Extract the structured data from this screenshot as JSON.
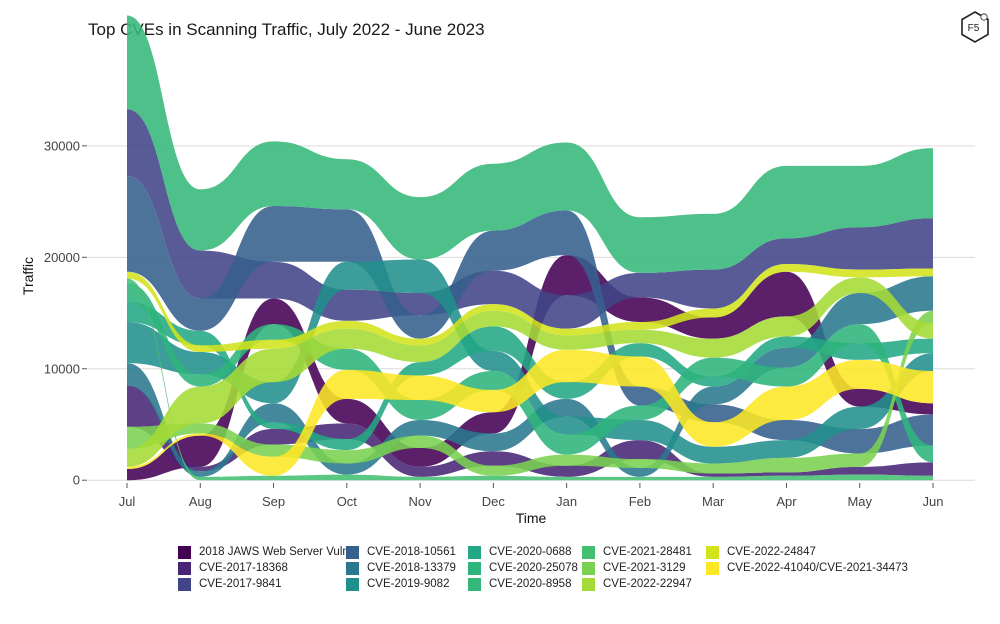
{
  "chart_data": {
    "type": "area",
    "subtype": "bump-stream",
    "title": "Top CVEs in Scanning Traffic, July 2022 - June 2023",
    "xlabel": "Time",
    "ylabel": "Traffic",
    "x": [
      "Jul",
      "Aug",
      "Sep",
      "Oct",
      "Nov",
      "Dec",
      "Jan",
      "Feb",
      "Mar",
      "Apr",
      "May",
      "Jun"
    ],
    "yticks": [
      0,
      10000,
      20000,
      30000
    ],
    "ytick_labels": [
      "0",
      "10000",
      "20000",
      "30000"
    ],
    "ylim": [
      -700,
      39500
    ],
    "grid": true,
    "legend_position": "bottom",
    "series": [
      {
        "name": "2018 JAWS Web Server Vuln",
        "color": "#440154",
        "values": [
          1000,
          2800,
          2300,
          2200,
          1700,
          1900,
          3600,
          2200,
          1900,
          4000,
          1600,
          1000
        ]
      },
      {
        "name": "CVE-2017-18368",
        "color": "#482576",
        "values": [
          3700,
          400,
          1400,
          1400,
          900,
          1300,
          1000,
          1700,
          300,
          300,
          700,
          1200
        ]
      },
      {
        "name": "CVE-2017-9841",
        "color": "#414487",
        "values": [
          6000,
          4300,
          3300,
          2800,
          2000,
          3000,
          3000,
          2200,
          3500,
          2300,
          3800,
          4500
        ]
      },
      {
        "name": "CVE-2018-10561",
        "color": "#35608d",
        "values": [
          8600,
          2900,
          5000,
          4700,
          2100,
          3600,
          4000,
          1700,
          1600,
          1800,
          2200,
          2800
        ]
      },
      {
        "name": "CVE-2018-13379",
        "color": "#2a788e",
        "values": [
          2000,
          500,
          1700,
          1000,
          1400,
          1600,
          1600,
          800,
          1600,
          1800,
          2800,
          3100
        ]
      },
      {
        "name": "CVE-2019-9082",
        "color": "#21908c",
        "values": [
          3700,
          2000,
          1900,
          2500,
          3000,
          1800,
          1600,
          1800,
          1500,
          1600,
          2000,
          1600
        ]
      },
      {
        "name": "CVE-2020-0688",
        "color": "#22a884",
        "values": [
          1800,
          1300,
          600,
          1000,
          1200,
          2200,
          1500,
          1200,
          900,
          1000,
          1500,
          1300
        ]
      },
      {
        "name": "CVE-2020-25078",
        "color": "#2fb47c",
        "values": [
          1700,
          1100,
          1400,
          1900,
          1800,
          1700,
          1800,
          1300,
          1700,
          1700,
          1700,
          1500
        ]
      },
      {
        "name": "CVE-2020-8958",
        "color": "#35b779",
        "values": [
          8400,
          5500,
          5800,
          4500,
          5600,
          6000,
          6100,
          5000,
          5000,
          6500,
          5500,
          6300
        ]
      },
      {
        "name": "CVE-2021-28481",
        "color": "#43bf71",
        "values": [
          400,
          300,
          400,
          500,
          300,
          400,
          300,
          300,
          300,
          400,
          500,
          400
        ]
      },
      {
        "name": "CVE-2021-3129",
        "color": "#7ad151",
        "values": [
          2000,
          900,
          1100,
          1200,
          1100,
          900,
          1000,
          800,
          900,
          1300,
          1200,
          1100
        ]
      },
      {
        "name": "CVE-2022-22947",
        "color": "#a5db36",
        "values": [
          1600,
          3300,
          3000,
          1800,
          1500,
          1400,
          1300,
          1200,
          1700,
          1800,
          1400,
          1400
        ]
      },
      {
        "name": "CVE-2022-24847",
        "color": "#d2e21b",
        "values": [
          600,
          600,
          800,
          700,
          600,
          600,
          600,
          700,
          800,
          700,
          700,
          700
        ]
      },
      {
        "name": "CVE-2022-41040/CVE-2021-34473",
        "color": "#fde725",
        "values": [
          200,
          200,
          1700,
          2600,
          2200,
          2000,
          2900,
          2700,
          2200,
          3000,
          2600,
          2900
        ]
      }
    ],
    "stack_order_bottom_to_top": [
      [
        "2018 JAWS Web Server Vuln",
        "CVE-2022-41040/CVE-2021-34473",
        "CVE-2022-22947",
        "CVE-2021-3129",
        "CVE-2017-18368",
        "CVE-2018-13379",
        "CVE-2019-9082",
        "CVE-2020-0688",
        "CVE-2020-25078",
        "CVE-2021-28481",
        "CVE-2022-24847",
        "CVE-2018-10561",
        "CVE-2017-9841",
        "CVE-2020-8958"
      ],
      [
        "CVE-2021-28481",
        "CVE-2018-13379",
        "CVE-2017-18368",
        "2018 JAWS Web Server Vuln",
        "CVE-2022-41040/CVE-2021-34473",
        "CVE-2021-3129",
        "CVE-2022-22947",
        "CVE-2020-25078",
        "CVE-2019-9082",
        "CVE-2022-24847",
        "CVE-2020-0688",
        "CVE-2018-10561",
        "CVE-2017-9841",
        "CVE-2020-8958"
      ],
      [
        "CVE-2021-28481",
        "CVE-2022-41040/CVE-2021-34473",
        "CVE-2021-3129",
        "CVE-2017-18368",
        "CVE-2020-0688",
        "CVE-2018-13379",
        "CVE-2019-9082",
        "CVE-2022-22947",
        "CVE-2022-24847",
        "CVE-2020-25078",
        "2018 JAWS Web Server Vuln",
        "CVE-2017-9841",
        "CVE-2018-10561",
        "CVE-2020-8958"
      ],
      [
        "CVE-2021-28481",
        "CVE-2018-13379",
        "CVE-2021-3129",
        "CVE-2020-0688",
        "CVE-2017-18368",
        "2018 JAWS Web Server Vuln",
        "CVE-2022-41040/CVE-2021-34473",
        "CVE-2020-25078",
        "CVE-2022-22947",
        "CVE-2022-24847",
        "CVE-2017-9841",
        "CVE-2019-9082",
        "CVE-2018-10561",
        "CVE-2020-8958"
      ],
      [
        "CVE-2021-28481",
        "CVE-2017-18368",
        "2018 JAWS Web Server Vuln",
        "CVE-2021-3129",
        "CVE-2018-13379",
        "CVE-2020-25078",
        "CVE-2022-41040/CVE-2021-34473",
        "CVE-2020-0688",
        "CVE-2022-22947",
        "CVE-2022-24847",
        "CVE-2018-10561",
        "CVE-2017-9841",
        "CVE-2019-9082",
        "CVE-2020-8958"
      ],
      [
        "CVE-2021-28481",
        "CVE-2021-3129",
        "CVE-2017-18368",
        "CVE-2018-13379",
        "2018 JAWS Web Server Vuln",
        "CVE-2022-41040/CVE-2021-34473",
        "CVE-2020-25078",
        "CVE-2019-9082",
        "CVE-2020-0688",
        "CVE-2022-22947",
        "CVE-2022-24847",
        "CVE-2017-9841",
        "CVE-2018-10561",
        "CVE-2020-8958"
      ],
      [
        "CVE-2021-28481",
        "CVE-2017-18368",
        "CVE-2021-3129",
        "CVE-2020-25078",
        "CVE-2019-9082",
        "CVE-2018-13379",
        "CVE-2020-0688",
        "CVE-2022-41040/CVE-2021-34473",
        "CVE-2022-22947",
        "CVE-2022-24847",
        "CVE-2017-9841",
        "2018 JAWS Web Server Vuln",
        "CVE-2018-10561",
        "CVE-2020-8958"
      ],
      [
        "CVE-2021-28481",
        "CVE-2018-13379",
        "CVE-2021-3129",
        "CVE-2017-18368",
        "CVE-2019-9082",
        "CVE-2020-25078",
        "CVE-2018-10561",
        "CVE-2022-41040/CVE-2021-34473",
        "CVE-2020-0688",
        "CVE-2022-22947",
        "CVE-2022-24847",
        "2018 JAWS Web Server Vuln",
        "CVE-2017-9841",
        "CVE-2020-8958"
      ],
      [
        "CVE-2021-28481",
        "CVE-2017-18368",
        "CVE-2021-3129",
        "CVE-2019-9082",
        "CVE-2022-41040/CVE-2021-34473",
        "CVE-2018-10561",
        "CVE-2018-13379",
        "CVE-2020-0688",
        "CVE-2020-25078",
        "CVE-2022-22947",
        "2018 JAWS Web Server Vuln",
        "CVE-2022-24847",
        "CVE-2017-9841",
        "CVE-2020-8958"
      ],
      [
        "CVE-2021-28481",
        "CVE-2017-18368",
        "CVE-2021-3129",
        "CVE-2019-9082",
        "CVE-2018-10561",
        "CVE-2022-41040/CVE-2021-34473",
        "CVE-2020-25078",
        "CVE-2018-13379",
        "CVE-2020-0688",
        "CVE-2022-22947",
        "2018 JAWS Web Server Vuln",
        "CVE-2022-24847",
        "CVE-2017-9841",
        "CVE-2020-8958"
      ],
      [
        "CVE-2021-28481",
        "CVE-2017-18368",
        "CVE-2021-3129",
        "CVE-2018-10561",
        "CVE-2019-9082",
        "2018 JAWS Web Server Vuln",
        "CVE-2022-41040/CVE-2021-34473",
        "CVE-2020-0688",
        "CVE-2020-25078",
        "CVE-2018-13379",
        "CVE-2022-22947",
        "CVE-2022-24847",
        "CVE-2017-9841",
        "CVE-2020-8958"
      ],
      [
        "CVE-2021-28481",
        "CVE-2017-18368",
        "CVE-2020-25078",
        "CVE-2018-10561",
        "2018 JAWS Web Server Vuln",
        "CVE-2022-41040/CVE-2021-34473",
        "CVE-2019-9082",
        "CVE-2020-0688",
        "CVE-2022-22947",
        "CVE-2021-3129",
        "CVE-2018-13379",
        "CVE-2022-24847",
        "CVE-2017-9841",
        "CVE-2020-8958"
      ]
    ]
  },
  "legend": {
    "columns": [
      [
        "2018 JAWS Web Server Vuln",
        "CVE-2017-18368",
        "CVE-2017-9841"
      ],
      [
        "CVE-2018-10561",
        "CVE-2018-13379",
        "CVE-2019-9082"
      ],
      [
        "CVE-2020-0688",
        "CVE-2020-25078",
        "CVE-2020-8958"
      ],
      [
        "CVE-2021-28481",
        "CVE-2021-3129",
        "CVE-2022-22947"
      ],
      [
        "CVE-2022-24847",
        "CVE-2022-41040/CVE-2021-34473"
      ]
    ]
  },
  "logo": {
    "text": "F5",
    "icon": "f5-logo-icon"
  }
}
